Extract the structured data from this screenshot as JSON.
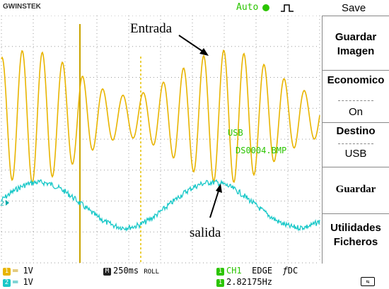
{
  "header": {
    "brand": "GWINSTEK",
    "mode": "Auto",
    "menu_title": "Save"
  },
  "menu": [
    {
      "lines": [
        "Guardar",
        "Imagen"
      ]
    },
    {
      "lines": [
        "Economico"
      ],
      "value": "On"
    },
    {
      "lines": [
        "Destino"
      ],
      "value": "USB"
    },
    {
      "lines": [
        "Guardar"
      ]
    },
    {
      "lines": [
        "Utilidades",
        "Ficheros"
      ]
    }
  ],
  "screen": {
    "annotations": [
      "Entrada",
      "salida"
    ],
    "overlay": [
      "USB",
      "DS0004.BMP"
    ],
    "ch2_marker": "2"
  },
  "status": {
    "ch1": {
      "id": "1",
      "scale": "1V"
    },
    "ch2": {
      "id": "2",
      "scale": "1V"
    },
    "timebase_icon": "M",
    "timebase": "250ms",
    "mode": "ROLL",
    "trigger_icon": "1",
    "trigger_source": "CH1",
    "trigger_type": "EDGE",
    "coupling": "DC",
    "freq_icon": "1",
    "frequency": "2.82175Hz"
  }
}
